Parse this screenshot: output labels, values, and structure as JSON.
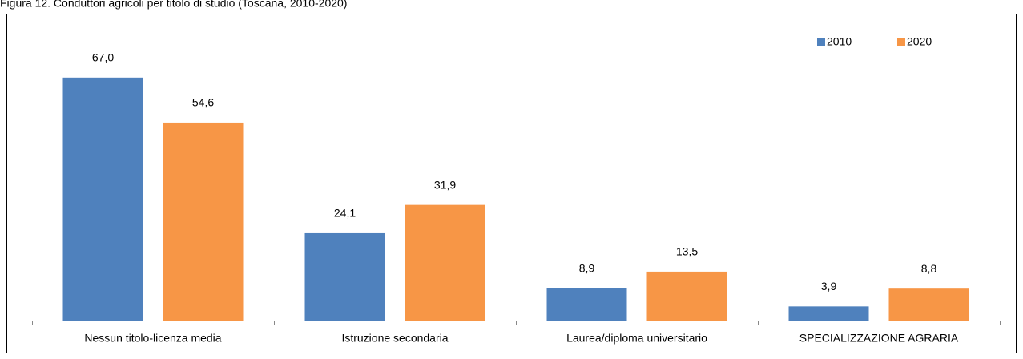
{
  "chart_data": {
    "type": "bar",
    "title": "Figura 12. Conduttori agricoli per titolo di studio (Toscana, 2010-2020)",
    "categories": [
      "Nessun titolo-licenza media",
      "Istruzione secondaria",
      "Laurea/diploma universitario",
      "SPECIALIZZAZIONE AGRARIA"
    ],
    "series": [
      {
        "name": "2010",
        "color": "#4f81bd",
        "values": [
          67.0,
          24.1,
          8.9,
          3.9
        ],
        "value_labels": [
          "67,0",
          "24,1",
          "8,9",
          "3,9"
        ]
      },
      {
        "name": "2020",
        "color": "#f79646",
        "values": [
          54.6,
          31.9,
          13.5,
          8.8
        ],
        "value_labels": [
          "54,6",
          "31,9",
          "13,5",
          "8,8"
        ]
      }
    ],
    "ylim": [
      0,
      80
    ],
    "legend": "top-right"
  }
}
